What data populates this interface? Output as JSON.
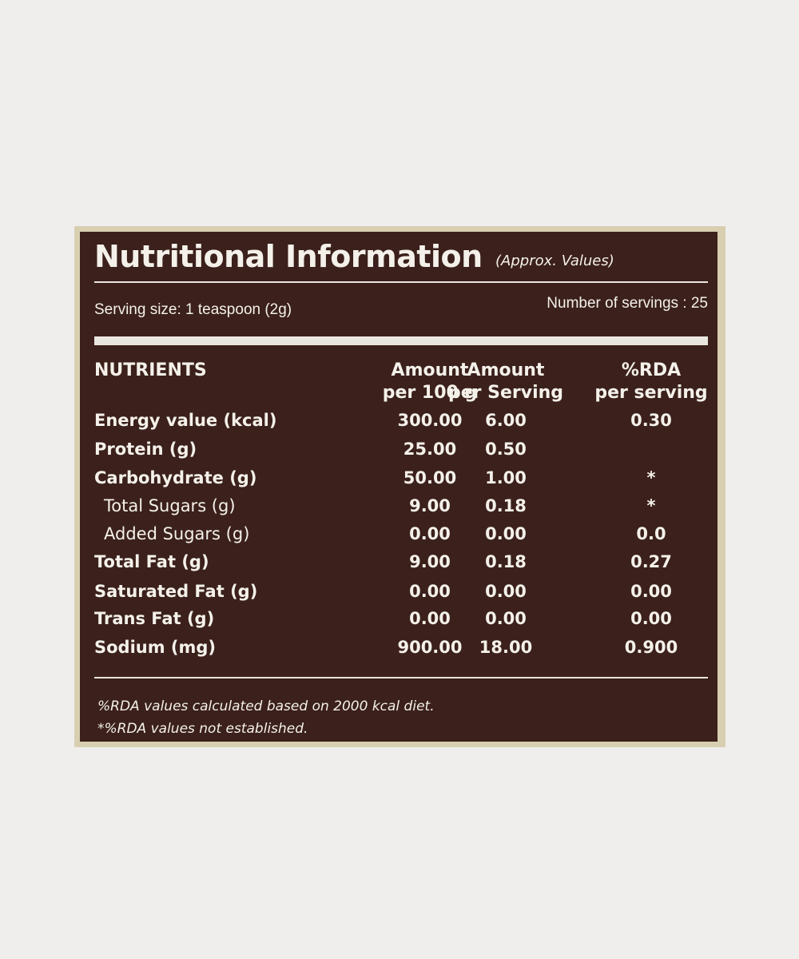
{
  "header": {
    "title": "Nutritional Information",
    "subtitle": "(Approx. Values)"
  },
  "serving": {
    "size": "Serving size: 1 teaspoon (2g)",
    "count": "Number of servings : 25"
  },
  "table": {
    "headers": [
      [
        "NUTRIENTS"
      ],
      [
        "Amount",
        "per 100 g"
      ],
      [
        "Amount",
        "per Serving"
      ],
      [
        "%RDA",
        "per serving"
      ]
    ],
    "rows": [
      {
        "nutrient": "Energy value (kcal)",
        "per_100g": "300.00",
        "per_serving": "6.00",
        "rda": "0.30"
      },
      {
        "nutrient": "Protein (g)",
        "per_100g": "25.00",
        "per_serving": "0.50"
      },
      {
        "nutrient": "Carbohydrate (g)",
        "per_100g": "50.00",
        "per_serving": "1.00",
        "rda": "*"
      },
      {
        "nutrient": "Total Sugars (g)",
        "per_100g": "9.00",
        "per_serving": "0.18",
        "rda": "*",
        "indent": true
      },
      {
        "nutrient": "Added Sugars (g)",
        "per_100g": "0.00",
        "per_serving": "0.00",
        "rda": "0.0",
        "indent": true
      },
      {
        "nutrient": "Total Fat (g)",
        "per_100g": "9.00",
        "per_serving": "0.18",
        "rda": "0.27"
      },
      {
        "nutrient": "Saturated Fat (g)",
        "per_100g": "0.00",
        "per_serving": "0.00",
        "rda": "0.00"
      },
      {
        "nutrient": "Trans Fat (g)",
        "per_100g": "0.00",
        "per_serving": "0.00",
        "rda": "0.00"
      },
      {
        "nutrient": "Sodium (mg)",
        "per_100g": "900.00",
        "per_serving": "18.00",
        "rda": "0.900"
      }
    ]
  },
  "footnotes": [
    "%RDA values calculated based on 2000 kcal diet.",
    "*%RDA values not established."
  ]
}
